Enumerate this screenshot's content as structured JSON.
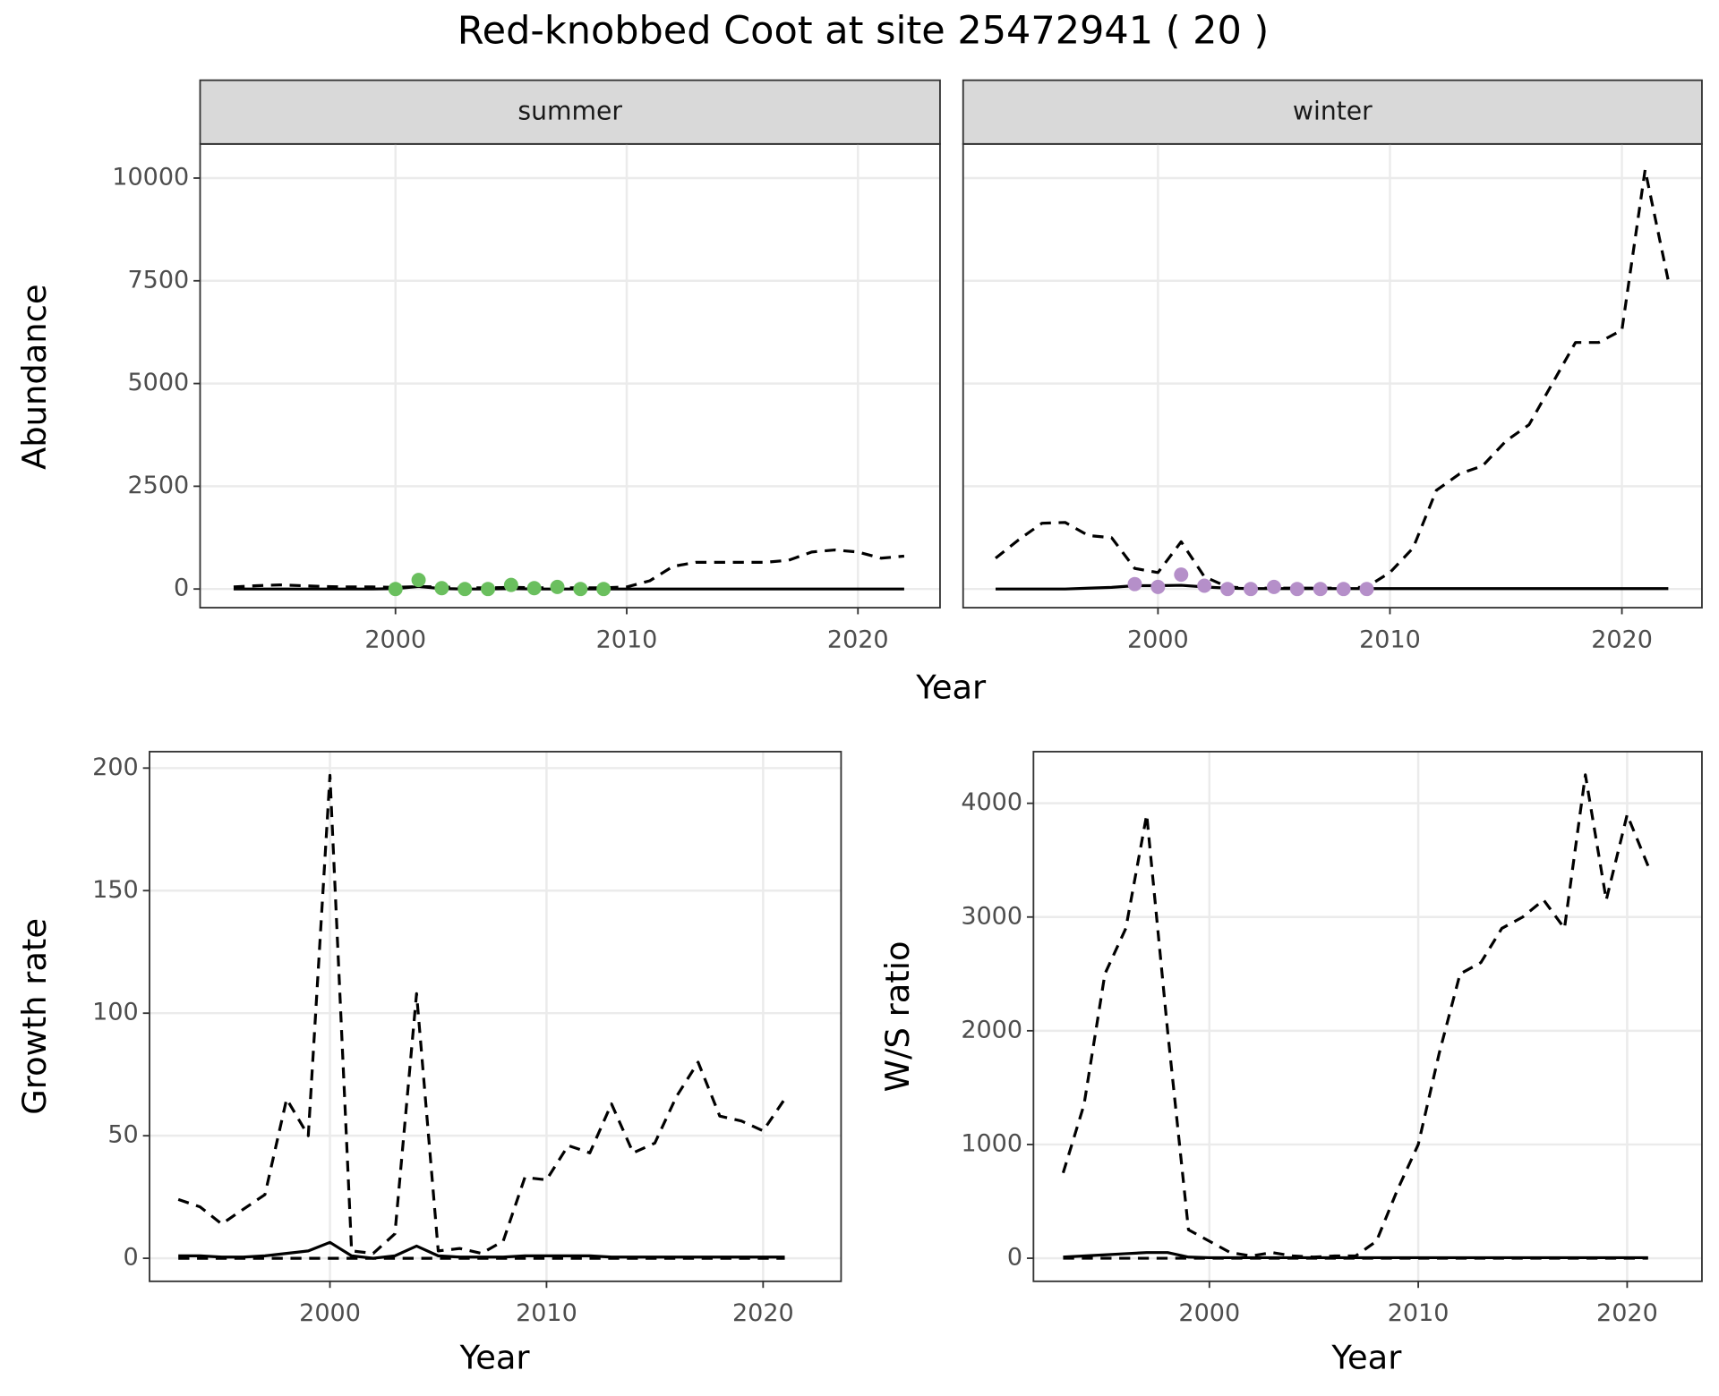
{
  "title": "Red-knobbed Coot at site 25472941 ( 20 )",
  "chart_data": [
    {
      "type": "line",
      "title": "summer",
      "xlabel": "Year",
      "ylabel": "Abundance",
      "x": [
        1993,
        1994,
        1995,
        1996,
        1997,
        1998,
        1999,
        2000,
        2001,
        2002,
        2003,
        2004,
        2005,
        2006,
        2007,
        2008,
        2009,
        2010,
        2011,
        2012,
        2013,
        2014,
        2015,
        2016,
        2017,
        2018,
        2019,
        2020,
        2021,
        2022
      ],
      "xlim": [
        1991.55,
        2023.55
      ],
      "xticks": [
        2000,
        2010,
        2020
      ],
      "ylim": [
        -455,
        10830
      ],
      "yticks": [
        0,
        2500,
        5000,
        7500,
        10000
      ],
      "grid": true,
      "series": [
        {
          "color": "#000000",
          "dash": true,
          "values": [
            50,
            80,
            100,
            80,
            60,
            50,
            50,
            40,
            60,
            50,
            30,
            30,
            40,
            30,
            30,
            30,
            30,
            50,
            200,
            550,
            650,
            650,
            650,
            650,
            700,
            900,
            950,
            900,
            750,
            800
          ]
        },
        {
          "color": "#000000",
          "dash": false,
          "values": [
            0,
            0,
            0,
            0,
            0,
            0,
            0,
            10,
            60,
            10,
            0,
            0,
            10,
            0,
            0,
            0,
            0,
            0,
            0,
            0,
            0,
            0,
            0,
            0,
            0,
            0,
            0,
            0,
            0,
            0
          ]
        },
        {
          "color": "#6abf5e",
          "markers": true,
          "values": [
            null,
            null,
            null,
            null,
            null,
            null,
            null,
            0,
            220,
            20,
            0,
            0,
            100,
            20,
            50,
            0,
            0,
            null,
            null,
            null,
            null,
            null,
            null,
            null,
            null,
            null,
            null,
            null,
            null,
            null
          ]
        }
      ]
    },
    {
      "type": "line",
      "title": "winter",
      "x": [
        1993,
        1994,
        1995,
        1996,
        1997,
        1998,
        1999,
        2000,
        2001,
        2002,
        2003,
        2004,
        2005,
        2006,
        2007,
        2008,
        2009,
        2010,
        2011,
        2012,
        2013,
        2014,
        2015,
        2016,
        2017,
        2018,
        2019,
        2020,
        2021,
        2022
      ],
      "xlim": [
        1991.6,
        2023.45
      ],
      "xticks": [
        2000,
        2010,
        2020
      ],
      "ylim": [
        -455,
        10830
      ],
      "yticks": [
        0,
        2500,
        5000,
        7500,
        10000
      ],
      "grid": true,
      "series": [
        {
          "color": "#000000",
          "dash": true,
          "values": [
            750,
            1200,
            1600,
            1620,
            1300,
            1250,
            500,
            400,
            1150,
            300,
            50,
            20,
            20,
            20,
            20,
            20,
            50,
            400,
            1000,
            2400,
            2800,
            3000,
            3600,
            4000,
            5000,
            6000,
            6000,
            6300,
            10200,
            7500
          ]
        },
        {
          "color": "#000000",
          "dash": false,
          "values": [
            0,
            0,
            0,
            0,
            20,
            40,
            80,
            80,
            90,
            50,
            20,
            10,
            10,
            10,
            10,
            10,
            10,
            10,
            10,
            10,
            10,
            10,
            10,
            10,
            10,
            10,
            10,
            10,
            10,
            10
          ]
        },
        {
          "color": "#b58fc9",
          "markers": true,
          "values": [
            null,
            null,
            null,
            null,
            null,
            null,
            120,
            50,
            350,
            80,
            0,
            0,
            50,
            0,
            0,
            0,
            0,
            null,
            null,
            null,
            null,
            null,
            null,
            null,
            null,
            null,
            null,
            null,
            null,
            null
          ]
        }
      ]
    },
    {
      "type": "line",
      "xlabel": "Year",
      "ylabel": "Growth rate",
      "x": [
        1993,
        1994,
        1995,
        1996,
        1997,
        1998,
        1999,
        2000,
        2001,
        2002,
        2003,
        2004,
        2005,
        2006,
        2007,
        2008,
        2009,
        2010,
        2011,
        2012,
        2013,
        2014,
        2015,
        2016,
        2017,
        2018,
        2019,
        2020,
        2021
      ],
      "xlim": [
        1991.67,
        2023.6
      ],
      "xticks": [
        2000,
        2010,
        2020
      ],
      "ylim": [
        -9.4,
        206.7
      ],
      "yticks": [
        0,
        50,
        100,
        150,
        200
      ],
      "grid": true,
      "series": [
        {
          "color": "#000000",
          "dash": true,
          "values": [
            24,
            21,
            14,
            20,
            26,
            65,
            50,
            197,
            3,
            2,
            10,
            108,
            3,
            4,
            2,
            7,
            33,
            32,
            46,
            43,
            63,
            43,
            47,
            66,
            80,
            58,
            56,
            52,
            65
          ]
        },
        {
          "color": "#000000",
          "dash": true,
          "values": [
            0,
            0,
            0,
            0,
            0,
            0,
            0,
            0,
            0,
            0,
            0,
            0,
            0,
            0,
            0,
            0,
            0,
            0,
            0,
            0,
            0,
            0,
            0,
            0,
            0,
            0,
            0,
            0,
            0
          ]
        },
        {
          "color": "#000000",
          "dash": false,
          "values": [
            1,
            1,
            0.5,
            0.5,
            1,
            2,
            3,
            6.5,
            1,
            0,
            1,
            5,
            1,
            0.5,
            0.5,
            0.5,
            1,
            1,
            1,
            1,
            0.5,
            0.5,
            0.5,
            0.5,
            0.5,
            0.5,
            0.5,
            0.5,
            0.5
          ]
        }
      ]
    },
    {
      "type": "line",
      "xlabel": "Year",
      "ylabel": "W/S ratio",
      "x": [
        1993,
        1994,
        1995,
        1996,
        1997,
        1998,
        1999,
        2000,
        2001,
        2002,
        2003,
        2004,
        2005,
        2006,
        2007,
        2008,
        2009,
        2010,
        2011,
        2012,
        2013,
        2014,
        2015,
        2016,
        2017,
        2018,
        2019,
        2020,
        2021
      ],
      "xlim": [
        1991.58,
        2023.58
      ],
      "xticks": [
        2000,
        2010,
        2020
      ],
      "ylim": [
        -203,
        4454
      ],
      "yticks": [
        0,
        1000,
        2000,
        3000,
        4000
      ],
      "grid": true,
      "series": [
        {
          "color": "#000000",
          "dash": true,
          "values": [
            750,
            1350,
            2500,
            2900,
            3900,
            2000,
            250,
            150,
            50,
            20,
            50,
            20,
            10,
            20,
            20,
            150,
            600,
            1000,
            1800,
            2500,
            2600,
            2900,
            3000,
            3150,
            2900,
            4250,
            3150,
            3900,
            3450
          ]
        },
        {
          "color": "#000000",
          "dash": true,
          "values": [
            0,
            0,
            0,
            0,
            0,
            0,
            0,
            0,
            0,
            0,
            0,
            0,
            0,
            0,
            0,
            0,
            0,
            0,
            0,
            0,
            0,
            0,
            0,
            0,
            0,
            0,
            0,
            0,
            0
          ]
        },
        {
          "color": "#000000",
          "dash": false,
          "values": [
            10,
            20,
            30,
            40,
            50,
            50,
            10,
            5,
            5,
            5,
            5,
            5,
            5,
            5,
            5,
            5,
            5,
            5,
            5,
            5,
            5,
            5,
            5,
            5,
            5,
            5,
            5,
            5,
            5
          ]
        }
      ]
    }
  ]
}
